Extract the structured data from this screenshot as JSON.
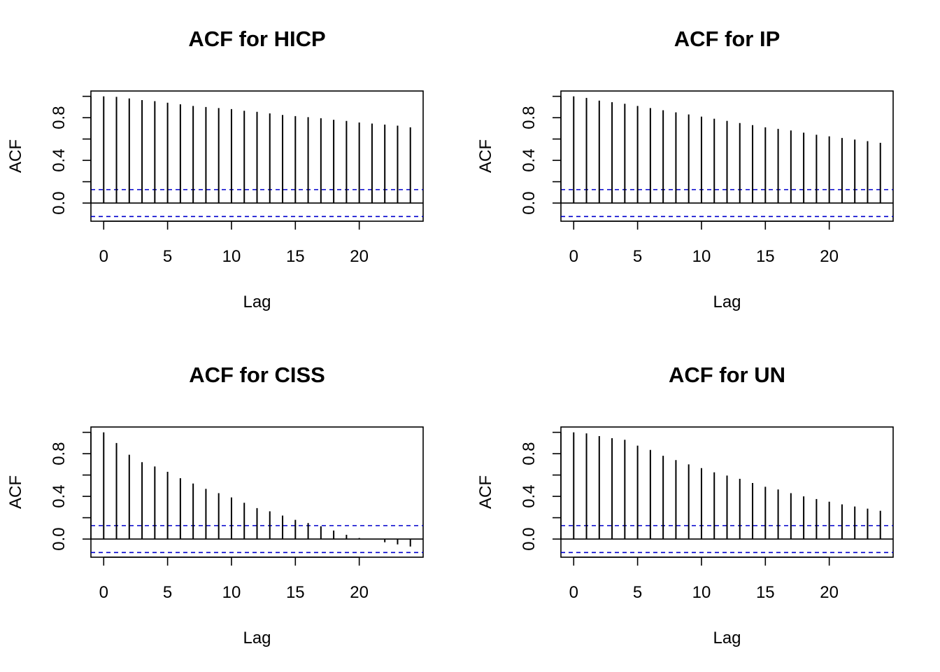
{
  "chart_data": [
    {
      "type": "acf",
      "title": "ACF for HICP",
      "xlabel": "Lag",
      "ylabel": "ACF",
      "xticks": [
        0,
        5,
        10,
        15,
        20
      ],
      "yticks": [
        "0.0",
        "0.4",
        "0.8"
      ],
      "xlim": [
        -1,
        25
      ],
      "ylim": [
        -0.17,
        1.05
      ],
      "ci": 0.126,
      "lags": [
        0,
        1,
        2,
        3,
        4,
        5,
        6,
        7,
        8,
        9,
        10,
        11,
        12,
        13,
        14,
        15,
        16,
        17,
        18,
        19,
        20,
        21,
        22,
        23,
        24
      ],
      "values": [
        1.0,
        0.995,
        0.98,
        0.965,
        0.955,
        0.94,
        0.925,
        0.91,
        0.9,
        0.89,
        0.88,
        0.865,
        0.855,
        0.84,
        0.825,
        0.815,
        0.805,
        0.795,
        0.78,
        0.77,
        0.755,
        0.745,
        0.735,
        0.725,
        0.71
      ]
    },
    {
      "type": "acf",
      "title": "ACF for IP",
      "xlabel": "Lag",
      "ylabel": "ACF",
      "xticks": [
        0,
        5,
        10,
        15,
        20
      ],
      "yticks": [
        "0.0",
        "0.4",
        "0.8"
      ],
      "xlim": [
        -1,
        25
      ],
      "ylim": [
        -0.17,
        1.05
      ],
      "ci": 0.126,
      "lags": [
        0,
        1,
        2,
        3,
        4,
        5,
        6,
        7,
        8,
        9,
        10,
        11,
        12,
        13,
        14,
        15,
        16,
        17,
        18,
        19,
        20,
        21,
        22,
        23,
        24
      ],
      "values": [
        1.0,
        0.985,
        0.96,
        0.945,
        0.93,
        0.91,
        0.89,
        0.87,
        0.85,
        0.83,
        0.81,
        0.79,
        0.77,
        0.75,
        0.73,
        0.71,
        0.695,
        0.68,
        0.66,
        0.64,
        0.625,
        0.61,
        0.595,
        0.58,
        0.565
      ]
    },
    {
      "type": "acf",
      "title": "ACF for CISS",
      "xlabel": "Lag",
      "ylabel": "ACF",
      "xticks": [
        0,
        5,
        10,
        15,
        20
      ],
      "yticks": [
        "0.0",
        "0.4",
        "0.8"
      ],
      "xlim": [
        -1,
        25
      ],
      "ylim": [
        -0.17,
        1.05
      ],
      "ci": 0.126,
      "lags": [
        0,
        1,
        2,
        3,
        4,
        5,
        6,
        7,
        8,
        9,
        10,
        11,
        12,
        13,
        14,
        15,
        16,
        17,
        18,
        19,
        20,
        21,
        22,
        23,
        24
      ],
      "values": [
        1.0,
        0.9,
        0.79,
        0.72,
        0.68,
        0.63,
        0.57,
        0.52,
        0.47,
        0.43,
        0.39,
        0.34,
        0.29,
        0.26,
        0.22,
        0.18,
        0.15,
        0.12,
        0.08,
        0.04,
        0.01,
        0.0,
        -0.03,
        -0.05,
        -0.07
      ]
    },
    {
      "type": "acf",
      "title": "ACF for UN",
      "xlabel": "Lag",
      "ylabel": "ACF",
      "xticks": [
        0,
        5,
        10,
        15,
        20
      ],
      "yticks": [
        "0.0",
        "0.4",
        "0.8"
      ],
      "xlim": [
        -1,
        25
      ],
      "ylim": [
        -0.17,
        1.05
      ],
      "ci": 0.126,
      "lags": [
        0,
        1,
        2,
        3,
        4,
        5,
        6,
        7,
        8,
        9,
        10,
        11,
        12,
        13,
        14,
        15,
        16,
        17,
        18,
        19,
        20,
        21,
        22,
        23,
        24
      ],
      "values": [
        1.0,
        0.99,
        0.965,
        0.945,
        0.93,
        0.875,
        0.835,
        0.78,
        0.74,
        0.7,
        0.665,
        0.625,
        0.595,
        0.565,
        0.525,
        0.49,
        0.465,
        0.43,
        0.4,
        0.375,
        0.35,
        0.325,
        0.305,
        0.285,
        0.265
      ]
    }
  ],
  "colors": {
    "bars": "#000000",
    "ci_line": "#0000CC",
    "zero_line": "#000000"
  }
}
